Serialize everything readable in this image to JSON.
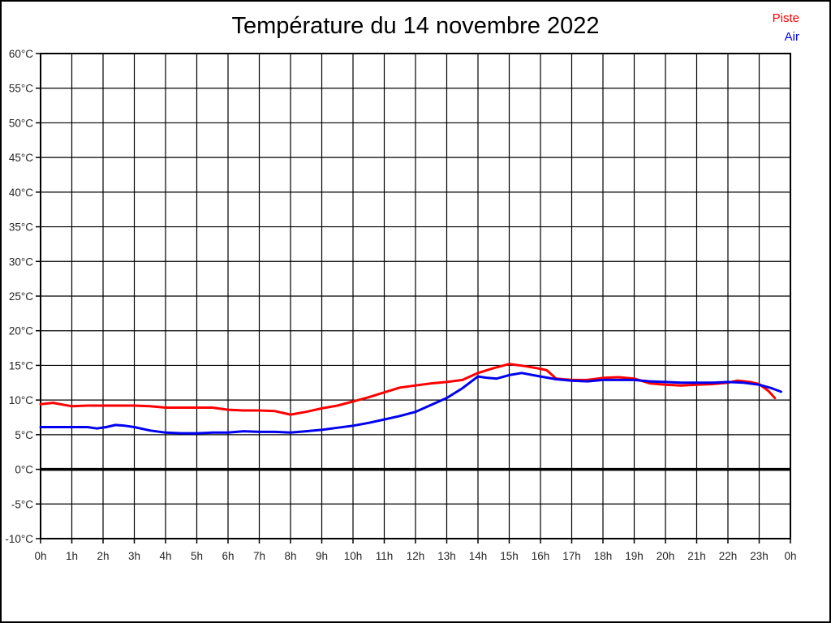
{
  "title": "Température du 14 novembre 2022",
  "legend": {
    "position": "top-right",
    "items": [
      {
        "label": "Piste",
        "color": "#ff0000"
      },
      {
        "label": "Air",
        "color": "#0000ee"
      }
    ]
  },
  "chart_data": {
    "type": "line",
    "title": "Température du 14 novembre 2022",
    "xlabel": "",
    "ylabel": "",
    "x_unit": "hour",
    "y_unit": "°C",
    "xlim": [
      0,
      24
    ],
    "ylim": [
      -10,
      60
    ],
    "grid": true,
    "grid_color": "#000000",
    "axis_color": "#000000",
    "tick_label_color": "#262626",
    "zero_line_value": 0,
    "legend_position": "top-right",
    "x_tick_hours": [
      0,
      1,
      2,
      3,
      4,
      5,
      6,
      7,
      8,
      9,
      10,
      11,
      12,
      13,
      14,
      15,
      16,
      17,
      18,
      19,
      20,
      21,
      22,
      23,
      24
    ],
    "x_tick_labels": [
      "0h",
      "1h",
      "2h",
      "3h",
      "4h",
      "5h",
      "6h",
      "7h",
      "8h",
      "9h",
      "10h",
      "11h",
      "12h",
      "13h",
      "14h",
      "15h",
      "16h",
      "17h",
      "18h",
      "19h",
      "20h",
      "21h",
      "22h",
      "23h",
      "0h"
    ],
    "y_tick_values": [
      60,
      55,
      50,
      45,
      40,
      35,
      30,
      25,
      20,
      15,
      10,
      5,
      0,
      -5,
      -10
    ],
    "y_tick_labels": [
      "60°C",
      "55°C",
      "50°C",
      "45°C",
      "40°C",
      "35°C",
      "30°C",
      "25°C",
      "20°C",
      "15°C",
      "10°C",
      "5°C",
      "0°C",
      "-5°C",
      "-10°C"
    ],
    "series": [
      {
        "name": "Piste",
        "color": "#ff0000",
        "x": [
          0,
          0.4,
          1,
          1.5,
          2,
          2.5,
          3,
          3.5,
          4,
          4.5,
          5,
          5.5,
          6,
          6.5,
          7,
          7.5,
          8,
          8.5,
          9,
          9.5,
          10,
          10.5,
          11,
          11.5,
          12,
          12.5,
          13,
          13.5,
          14,
          14.5,
          15,
          15.5,
          16,
          16.2,
          16.5,
          17,
          17.5,
          18,
          18.5,
          19,
          19.5,
          20,
          20.5,
          21,
          21.5,
          22,
          22.3,
          22.7,
          23,
          23.3,
          23.5
        ],
        "y": [
          9.4,
          9.6,
          9.1,
          9.2,
          9.2,
          9.2,
          9.2,
          9.1,
          8.9,
          8.9,
          8.9,
          8.9,
          8.6,
          8.5,
          8.5,
          8.4,
          7.9,
          8.3,
          8.8,
          9.2,
          9.8,
          10.4,
          11.1,
          11.8,
          12.1,
          12.4,
          12.6,
          12.9,
          13.9,
          14.6,
          15.2,
          14.9,
          14.5,
          14.3,
          13.1,
          12.9,
          12.9,
          13.2,
          13.3,
          13.1,
          12.4,
          12.2,
          12.1,
          12.2,
          12.3,
          12.5,
          12.8,
          12.6,
          12.3,
          11.3,
          10.3
        ]
      },
      {
        "name": "Air",
        "color": "#0000ee",
        "x": [
          0,
          0.5,
          1,
          1.5,
          1.8,
          2.1,
          2.4,
          2.7,
          3,
          3.5,
          4,
          4.5,
          5,
          5.5,
          6,
          6.5,
          7,
          7.5,
          8,
          8.5,
          9,
          9.5,
          10,
          10.5,
          11,
          11.5,
          12,
          12.5,
          13,
          13.5,
          14,
          14.3,
          14.6,
          15,
          15.4,
          16,
          16.5,
          17,
          17.5,
          18,
          18.5,
          19,
          19.5,
          20,
          20.5,
          21,
          21.5,
          22,
          22.5,
          23,
          23.4,
          23.7
        ],
        "y": [
          6.1,
          6.1,
          6.1,
          6.1,
          5.9,
          6.1,
          6.4,
          6.3,
          6.1,
          5.6,
          5.3,
          5.2,
          5.2,
          5.3,
          5.3,
          5.5,
          5.4,
          5.4,
          5.3,
          5.5,
          5.7,
          6.0,
          6.3,
          6.7,
          7.2,
          7.7,
          8.3,
          9.3,
          10.3,
          11.7,
          13.4,
          13.2,
          13.1,
          13.6,
          13.9,
          13.4,
          13.0,
          12.8,
          12.7,
          12.9,
          12.9,
          12.9,
          12.7,
          12.6,
          12.5,
          12.5,
          12.5,
          12.6,
          12.5,
          12.2,
          11.7,
          11.2
        ]
      }
    ]
  }
}
